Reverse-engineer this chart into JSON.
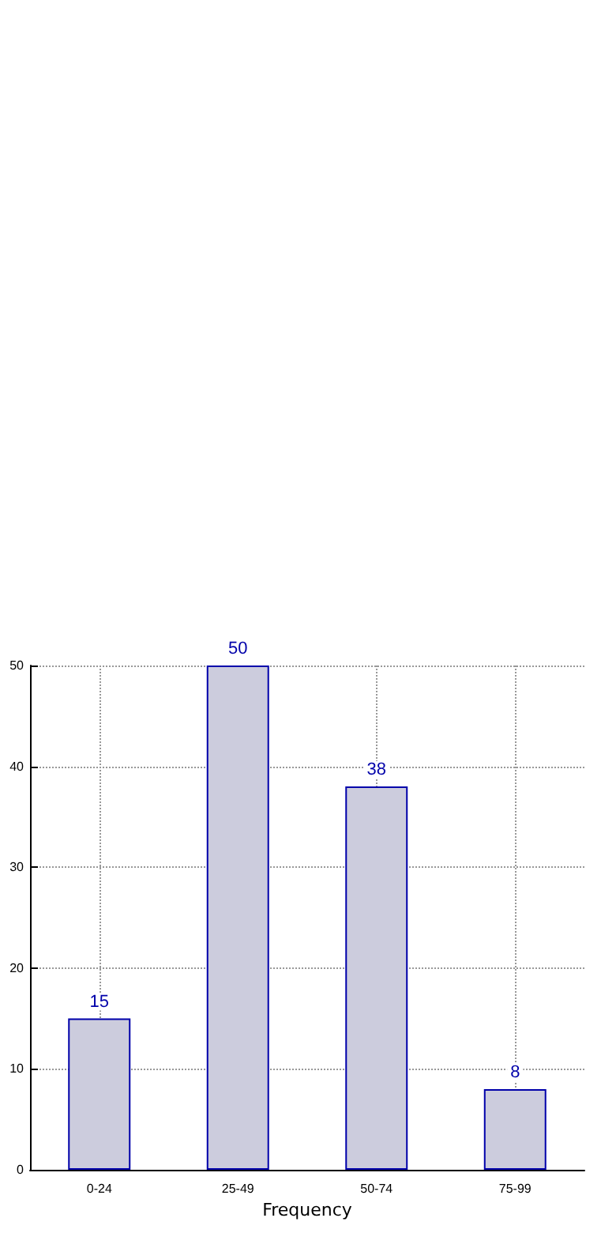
{
  "chart_data": {
    "type": "bar",
    "xlabel": "Frequency",
    "categories": [
      "0-24",
      "25-49",
      "50-74",
      "75-99"
    ],
    "values": [
      15,
      50,
      38,
      8
    ],
    "color": "#ccccdd",
    "ylim": [
      0,
      50
    ],
    "yticks": [
      0,
      10,
      20,
      30,
      40,
      50
    ],
    "grid": true,
    "data_labels": true
  }
}
